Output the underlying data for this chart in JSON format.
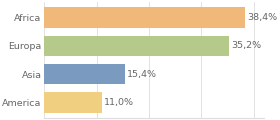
{
  "categories": [
    "Africa",
    "Europa",
    "Asia",
    "America"
  ],
  "values": [
    38.4,
    35.2,
    15.4,
    11.0
  ],
  "labels": [
    "38,4%",
    "35,2%",
    "15,4%",
    "11,0%"
  ],
  "bar_colors": [
    "#f0b97a",
    "#b5c98a",
    "#7a9abf",
    "#f0d080"
  ],
  "background_color": "#ffffff",
  "xlim": [
    0,
    42
  ],
  "bar_height": 0.72,
  "label_fontsize": 6.8,
  "category_fontsize": 6.8,
  "grid_color": "#dddddd",
  "text_color": "#666666"
}
